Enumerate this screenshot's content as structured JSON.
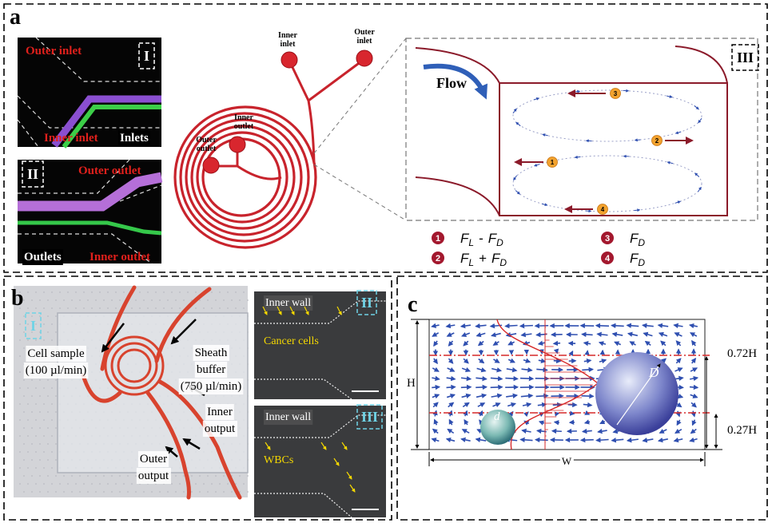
{
  "panel_a": {
    "label": "a",
    "inset_I": {
      "tag": "I",
      "outer_inlet": "Outer inlet",
      "inner_inlet": "Inner inlet",
      "caption": "Inlets"
    },
    "inset_II": {
      "tag": "II",
      "outer_outlet": "Outer outlet",
      "inner_outlet": "Inner outlet",
      "caption": "Outlets"
    },
    "device": {
      "inner_inlet": [
        "Inner",
        "inlet"
      ],
      "outer_inlet": [
        "Outer",
        "inlet"
      ],
      "inner_outlet": [
        "Inner",
        "outlet"
      ],
      "outer_outlet": [
        "Outer",
        "outlet"
      ]
    },
    "cross_section": {
      "tag": "III",
      "flow": "Flow",
      "markers": [
        "1",
        "2",
        "3",
        "4"
      ]
    },
    "legend": [
      {
        "number": "1",
        "symbol1": "F",
        "sub1": "L",
        "operator": "-",
        "symbol2": "F",
        "sub2": "D"
      },
      {
        "number": "2",
        "symbol1": "F",
        "sub1": "L",
        "operator": "+",
        "symbol2": "F",
        "sub2": "D"
      },
      {
        "number": "3",
        "symbol1": "F",
        "sub1": "D"
      },
      {
        "number": "4",
        "symbol1": "F",
        "sub1": "D"
      }
    ]
  },
  "panel_b": {
    "label": "b",
    "photo": {
      "tag": "I",
      "cell_sample": [
        "Cell sample",
        "(100 µl/min)"
      ],
      "sheath_buffer": [
        "Sheath",
        "buffer",
        "(750 µl/min)"
      ],
      "inner_output": [
        "Inner",
        "output"
      ],
      "outer_output": [
        "Outer",
        "output"
      ]
    },
    "inset_II": {
      "wall": "Inner wall",
      "tag": "II",
      "cells": "Cancer cells"
    },
    "inset_III": {
      "wall": "Inner wall",
      "tag": "III",
      "cells": "WBCs"
    }
  },
  "panel_c": {
    "label": "c",
    "height": "H",
    "width": "W",
    "small_particle": "d",
    "large_particle": "D",
    "upper_line": "0.72H",
    "lower_line": "0.27H"
  }
}
